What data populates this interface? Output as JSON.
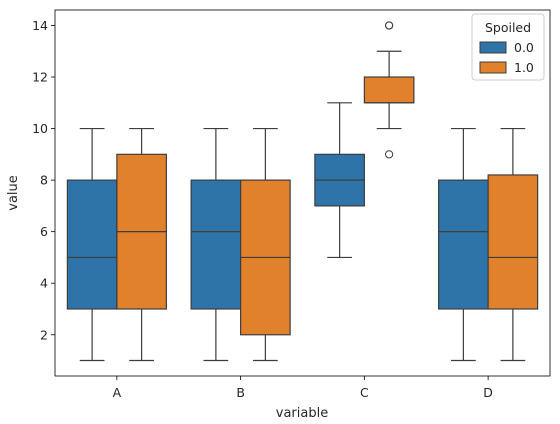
{
  "chart_data": {
    "type": "box",
    "xlabel": "variable",
    "ylabel": "value",
    "categories": [
      "A",
      "B",
      "C",
      "D"
    ],
    "ylim": [
      0.4,
      14.6
    ],
    "yticks": [
      2,
      4,
      6,
      8,
      10,
      12,
      14
    ],
    "grid": false,
    "legend": {
      "title": "Spoiled",
      "placement": "top-right",
      "entries": [
        "0.0",
        "1.0"
      ]
    },
    "series": [
      {
        "name": "0.0",
        "color": "#2e74a8",
        "boxes": [
          {
            "category": "A",
            "whisker_low": 1,
            "q1": 3,
            "median": 5,
            "q3": 8,
            "whisker_high": 10,
            "outliers": []
          },
          {
            "category": "B",
            "whisker_low": 1,
            "q1": 3,
            "median": 6,
            "q3": 8,
            "whisker_high": 10,
            "outliers": []
          },
          {
            "category": "C",
            "whisker_low": 5,
            "q1": 7,
            "median": 8,
            "q3": 9,
            "whisker_high": 11,
            "outliers": []
          },
          {
            "category": "D",
            "whisker_low": 1,
            "q1": 3,
            "median": 6,
            "q3": 8,
            "whisker_high": 10,
            "outliers": []
          }
        ]
      },
      {
        "name": "1.0",
        "color": "#e1812c",
        "boxes": [
          {
            "category": "A",
            "whisker_low": 1,
            "q1": 3,
            "median": 6,
            "q3": 9,
            "whisker_high": 10,
            "outliers": []
          },
          {
            "category": "B",
            "whisker_low": 1,
            "q1": 2,
            "median": 5,
            "q3": 8,
            "whisker_high": 10,
            "outliers": []
          },
          {
            "category": "C",
            "whisker_low": 10,
            "q1": 11,
            "median": 11,
            "q3": 12,
            "whisker_high": 13,
            "outliers": [
              9,
              14,
              14
            ]
          },
          {
            "category": "D",
            "whisker_low": 1,
            "q1": 3,
            "median": 5,
            "q3": 8.2,
            "whisker_high": 10,
            "outliers": []
          }
        ]
      }
    ]
  }
}
